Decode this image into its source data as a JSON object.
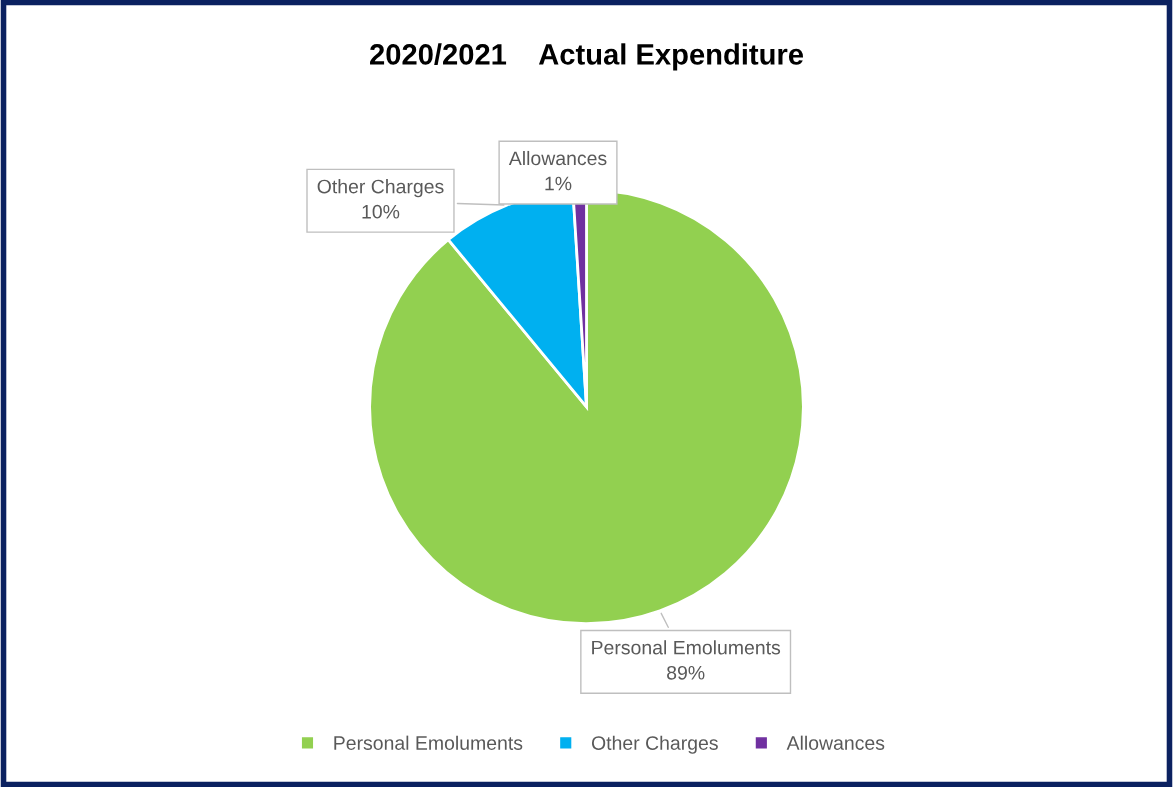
{
  "chart_data": {
    "type": "pie",
    "title": "2020/2021    Actual Expenditure",
    "categories": [
      "Personal Emoluments",
      "Other Charges",
      "Allowances"
    ],
    "values": [
      89,
      10,
      1
    ],
    "colors": [
      "#92d050",
      "#00b0f0",
      "#7030a0"
    ],
    "value_labels": [
      "89%",
      "10%",
      "1%"
    ],
    "legend": "bottom"
  }
}
